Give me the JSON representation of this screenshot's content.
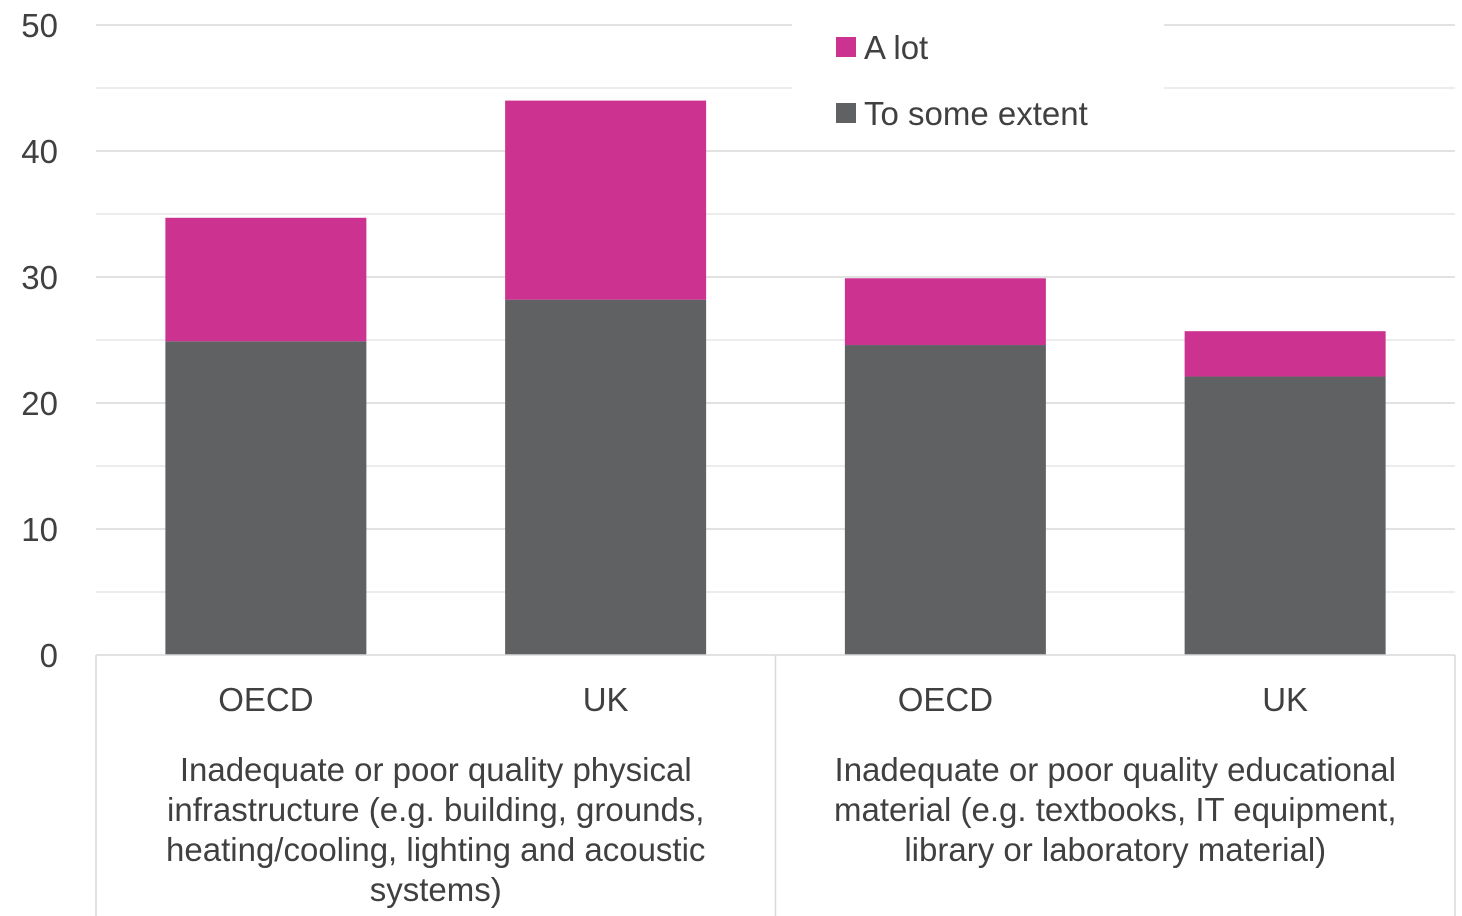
{
  "chart_data": {
    "type": "bar",
    "stacked": true,
    "groups": [
      {
        "label_lines": [
          "Inadequate or poor quality physical",
          "infrastructure (e.g. building, grounds,",
          "heating/cooling, lighting and acoustic",
          "systems)"
        ]
      },
      {
        "label_lines": [
          "Inadequate or poor quality educational",
          "material (e.g. textbooks, IT equipment,",
          "library or laboratory material)"
        ]
      }
    ],
    "categories": [
      "OECD",
      "UK",
      "OECD",
      "UK"
    ],
    "category_group": [
      0,
      0,
      1,
      1
    ],
    "series": [
      {
        "name": "To some extent",
        "color": "#606163",
        "values": [
          24.9,
          28.2,
          24.6,
          22.1
        ]
      },
      {
        "name": "A lot",
        "color": "#CC3290",
        "values": [
          9.8,
          15.8,
          5.3,
          3.6
        ]
      }
    ],
    "legend_order": [
      "A lot",
      "To some extent"
    ],
    "legend_position": "top-right",
    "ylim": [
      0,
      50
    ],
    "yticks": [
      0,
      10,
      20,
      30,
      40,
      50
    ],
    "minor_gridlines": true,
    "gridline_color": "#D9D9D9",
    "axis_line_color": "#D9D9D9"
  }
}
